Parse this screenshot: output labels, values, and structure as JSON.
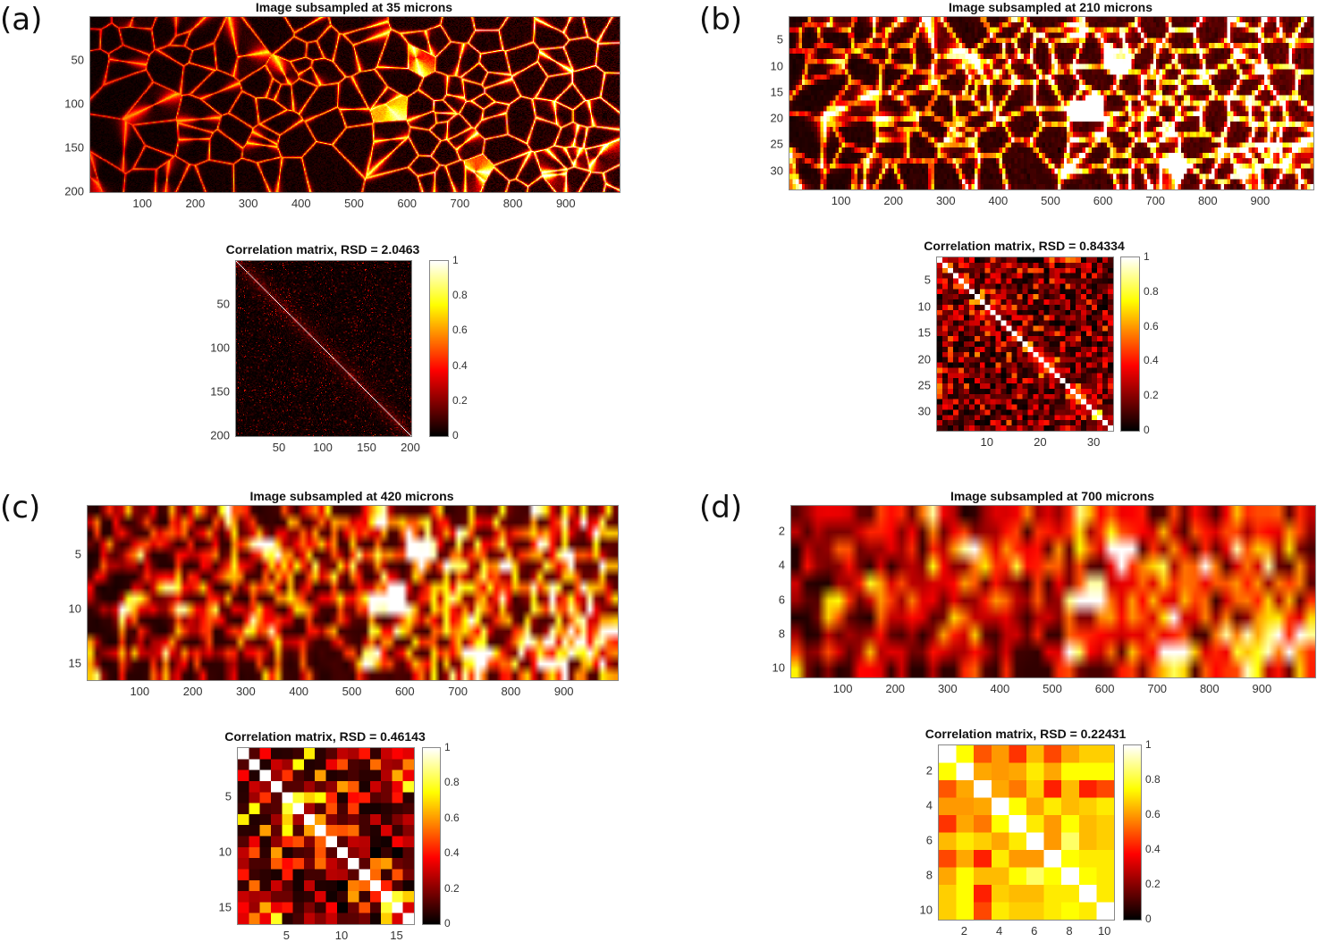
{
  "panels": [
    {
      "id": "a",
      "label": "(a)",
      "image_title": "Image subsampled at 35 microns",
      "image_yticks": [
        "50",
        "100",
        "150",
        "200"
      ],
      "image_xticks": [
        "100",
        "200",
        "300",
        "400",
        "500",
        "600",
        "700",
        "800",
        "900"
      ],
      "corr_title": "Correlation matrix, RSD = 2.0463",
      "corr_ticks": [
        "50",
        "100",
        "150",
        "200"
      ],
      "rows": 200
    },
    {
      "id": "b",
      "label": "(b)",
      "image_title": "Image subsampled at 210 microns",
      "image_yticks": [
        "5",
        "10",
        "15",
        "20",
        "25",
        "30"
      ],
      "image_xticks": [
        "100",
        "200",
        "300",
        "400",
        "500",
        "600",
        "700",
        "800",
        "900"
      ],
      "corr_title": "Correlation matrix, RSD = 0.84334",
      "corr_yticks": [
        "5",
        "10",
        "15",
        "20",
        "25",
        "30"
      ],
      "corr_xticks": [
        "10",
        "20",
        "30"
      ],
      "rows": 33
    },
    {
      "id": "c",
      "label": "(c)",
      "image_title": "Image subsampled at 420 microns",
      "image_yticks": [
        "5",
        "10",
        "15"
      ],
      "image_xticks": [
        "100",
        "200",
        "300",
        "400",
        "500",
        "600",
        "700",
        "800",
        "900"
      ],
      "corr_title": "Correlation matrix, RSD = 0.46143",
      "corr_ticks": [
        "5",
        "10",
        "15"
      ],
      "rows": 16
    },
    {
      "id": "d",
      "label": "(d)",
      "image_title": "Image subsampled at 700 microns",
      "image_yticks": [
        "2",
        "4",
        "6",
        "8",
        "10"
      ],
      "image_xticks": [
        "100",
        "200",
        "300",
        "400",
        "500",
        "600",
        "700",
        "800",
        "900"
      ],
      "corr_title": "Correlation matrix, RSD = 0.22431",
      "corr_ticks": [
        "2",
        "4",
        "6",
        "8",
        "10"
      ],
      "rows": 10
    }
  ],
  "colorbar_ticks": [
    "0",
    "0.2",
    "0.4",
    "0.6",
    "0.8",
    "1"
  ],
  "chart_data": [
    {
      "type": "heatmap",
      "title": "Image subsampled at 35 microns",
      "colormap": "hot",
      "xlim": [
        0,
        1000
      ],
      "ylim": [
        0,
        200
      ]
    },
    {
      "type": "heatmap",
      "title": "Correlation matrix, RSD = 2.0463",
      "size": 200,
      "clim": [
        0,
        1
      ]
    },
    {
      "type": "heatmap",
      "title": "Image subsampled at 210 microns",
      "colormap": "hot",
      "xlim": [
        0,
        1000
      ],
      "ylim": [
        0,
        33
      ]
    },
    {
      "type": "heatmap",
      "title": "Correlation matrix, RSD = 0.84334",
      "size": 33,
      "clim": [
        0,
        1
      ]
    },
    {
      "type": "heatmap",
      "title": "Image subsampled at 420 microns",
      "colormap": "hot",
      "xlim": [
        0,
        1000
      ],
      "ylim": [
        0,
        16
      ]
    },
    {
      "type": "heatmap",
      "title": "Correlation matrix, RSD = 0.46143",
      "size": 16,
      "clim": [
        0,
        1
      ]
    },
    {
      "type": "heatmap",
      "title": "Image subsampled at 700 microns",
      "colormap": "hot",
      "xlim": [
        0,
        1000
      ],
      "ylim": [
        0,
        10
      ]
    },
    {
      "type": "heatmap",
      "title": "Correlation matrix, RSD = 0.22431",
      "size": 10,
      "clim": [
        0,
        1
      ],
      "values": [
        [
          1,
          0.75,
          0.5,
          0.6,
          0.45,
          0.65,
          0.48,
          0.62,
          0.68,
          0.68
        ],
        [
          0.75,
          1,
          0.62,
          0.6,
          0.62,
          0.72,
          0.62,
          0.75,
          0.75,
          0.75
        ],
        [
          0.5,
          0.62,
          1,
          0.62,
          0.55,
          0.68,
          0.42,
          0.65,
          0.42,
          0.48
        ],
        [
          0.6,
          0.6,
          0.62,
          1,
          0.75,
          0.62,
          0.72,
          0.65,
          0.68,
          0.72
        ],
        [
          0.45,
          0.62,
          0.55,
          0.75,
          1,
          0.72,
          0.6,
          0.75,
          0.65,
          0.68
        ],
        [
          0.65,
          0.72,
          0.68,
          0.62,
          0.72,
          1,
          0.6,
          0.85,
          0.65,
          0.68
        ],
        [
          0.48,
          0.62,
          0.42,
          0.72,
          0.6,
          0.6,
          1,
          0.75,
          0.72,
          0.72
        ],
        [
          0.62,
          0.75,
          0.65,
          0.65,
          0.75,
          0.85,
          0.75,
          1,
          0.75,
          0.72
        ],
        [
          0.68,
          0.75,
          0.42,
          0.68,
          0.65,
          0.65,
          0.72,
          0.72,
          1,
          0.72
        ],
        [
          0.68,
          0.75,
          0.48,
          0.72,
          0.68,
          0.68,
          0.72,
          0.75,
          0.72,
          1
        ]
      ]
    }
  ]
}
